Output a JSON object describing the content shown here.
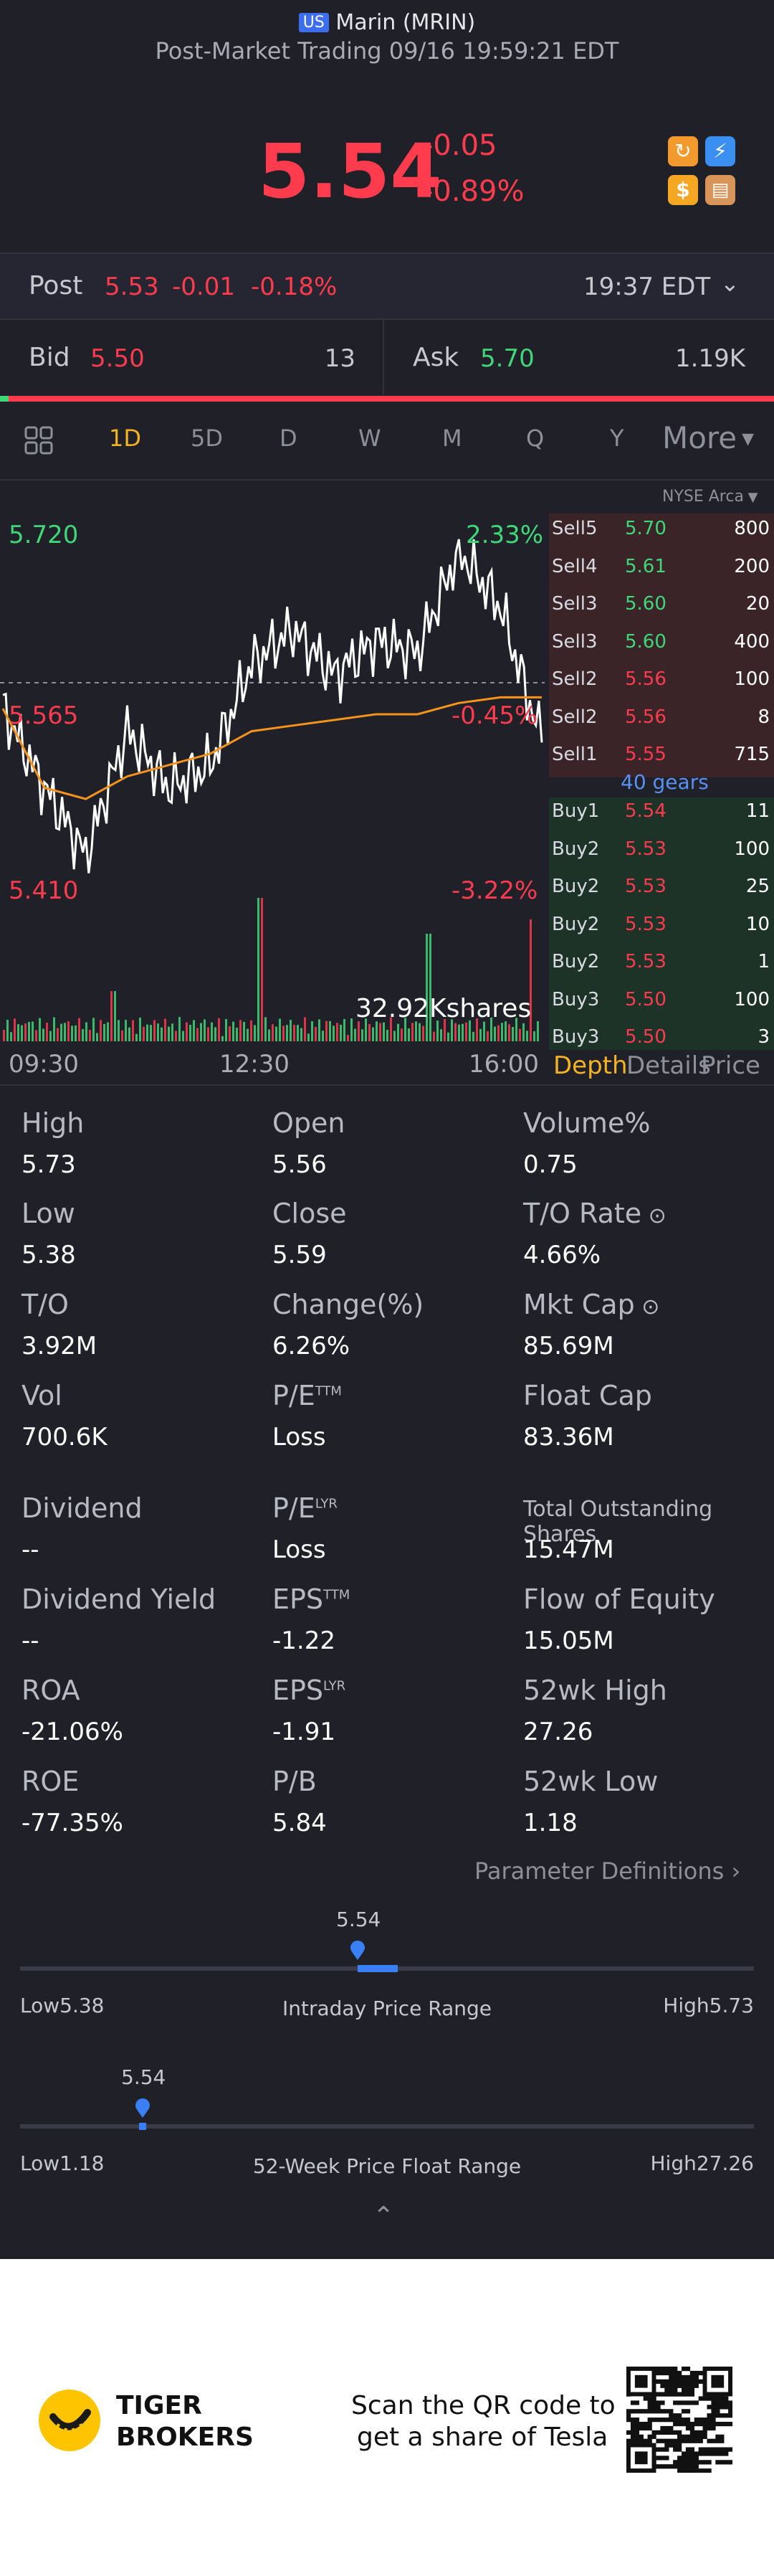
{
  "header": {
    "market_badge": "US",
    "name": "Marin (MRIN)",
    "session": "Post-Market Trading 09/16 19:59:21 EDT",
    "price": "5.54",
    "change": "-0.05",
    "change_pct": "-0.89%"
  },
  "post": {
    "label": "Post",
    "price": "5.53",
    "change": "-0.01",
    "change_pct": "-0.18%",
    "time": "19:37 EDT"
  },
  "bid_ask": {
    "bid_label": "Bid",
    "bid_price": "5.50",
    "bid_size": "13",
    "ask_label": "Ask",
    "ask_price": "5.70",
    "ask_size": "1.19K"
  },
  "chart_tabs": [
    "1D",
    "5D",
    "D",
    "W",
    "M",
    "Q",
    "Y"
  ],
  "more_label": "More",
  "exchange": "NYSE Arca",
  "chart": {
    "high_label": "5.720",
    "high_pct": "2.33%",
    "mid_label": "5.565",
    "mid_pct": "-0.45%",
    "low_label": "5.410",
    "low_pct": "-3.22%",
    "volume_label": "32.92Kshares",
    "time_labels": [
      "09:30",
      "12:30",
      "16:00"
    ]
  },
  "chart_data": {
    "type": "line",
    "x": [
      "09:30",
      "10:00",
      "10:30",
      "11:00",
      "11:30",
      "12:00",
      "12:30",
      "13:00",
      "13:30",
      "14:00",
      "14:30",
      "15:00",
      "15:30",
      "16:00"
    ],
    "series": [
      {
        "values": [
          5.57,
          5.5,
          5.44,
          5.55,
          5.5,
          5.52,
          5.61,
          5.64,
          5.6,
          5.63,
          5.62,
          5.71,
          5.66,
          5.54
        ]
      },
      {
        "values": [
          5.57,
          5.5,
          5.49,
          5.51,
          5.52,
          5.53,
          5.55,
          5.555,
          5.56,
          5.565,
          5.565,
          5.575,
          5.58,
          5.58
        ]
      }
    ],
    "ylim": [
      5.41,
      5.72
    ],
    "grid": false
  },
  "order_book": {
    "sells": [
      {
        "name": "Sell5",
        "price": "5.70",
        "qty": "800"
      },
      {
        "name": "Sell4",
        "price": "5.61",
        "qty": "200"
      },
      {
        "name": "Sell3",
        "price": "5.60",
        "qty": "20"
      },
      {
        "name": "Sell3",
        "price": "5.60",
        "qty": "400"
      },
      {
        "name": "Sell2",
        "price": "5.56",
        "qty": "100"
      },
      {
        "name": "Sell2",
        "price": "5.56",
        "qty": "8"
      },
      {
        "name": "Sell1",
        "price": "5.55",
        "qty": "715"
      }
    ],
    "gears": "40 gears",
    "buys": [
      {
        "name": "Buy1",
        "price": "5.54",
        "qty": "11"
      },
      {
        "name": "Buy2",
        "price": "5.53",
        "qty": "100"
      },
      {
        "name": "Buy2",
        "price": "5.53",
        "qty": "25"
      },
      {
        "name": "Buy2",
        "price": "5.53",
        "qty": "10"
      },
      {
        "name": "Buy2",
        "price": "5.53",
        "qty": "1"
      },
      {
        "name": "Buy3",
        "price": "5.50",
        "qty": "100"
      },
      {
        "name": "Buy3",
        "price": "5.50",
        "qty": "3"
      }
    ]
  },
  "panel_tabs": [
    "Depth",
    "Details",
    "Price"
  ],
  "stats": {
    "high": {
      "label": "High",
      "value": "5.73"
    },
    "open": {
      "label": "Open",
      "value": "5.56"
    },
    "volume_pct": {
      "label": "Volume%",
      "value": "0.75"
    },
    "low": {
      "label": "Low",
      "value": "5.38"
    },
    "close": {
      "label": "Close",
      "value": "5.59"
    },
    "to_rate": {
      "label": "T/O Rate",
      "value": "4.66%"
    },
    "to": {
      "label": "T/O",
      "value": "3.92M"
    },
    "change": {
      "label": "Change(%)",
      "value": "6.26%"
    },
    "mkt_cap": {
      "label": "Mkt Cap",
      "value": "85.69M"
    },
    "vol": {
      "label": "Vol",
      "value": "700.6K"
    },
    "pe_ttm": {
      "label": "P/E",
      "sup": "TTM",
      "value": "Loss"
    },
    "float_cap": {
      "label": "Float Cap",
      "value": "83.36M"
    },
    "dividend": {
      "label": "Dividend",
      "value": "--"
    },
    "pe_lyr": {
      "label": "P/E",
      "sup": "LYR",
      "value": "Loss"
    },
    "total_shares": {
      "label": "Total Outstanding Shares",
      "value": "15.47M"
    },
    "div_yield": {
      "label": "Dividend Yield",
      "value": "--"
    },
    "eps_ttm": {
      "label": "EPS",
      "sup": "TTM",
      "value": "-1.22"
    },
    "flow_equity": {
      "label": "Flow of Equity",
      "value": "15.05M"
    },
    "roa": {
      "label": "ROA",
      "value": "-21.06%"
    },
    "eps_lyr": {
      "label": "EPS",
      "sup": "LYR",
      "value": "-1.91"
    },
    "wk52_high": {
      "label": "52wk High",
      "value": "27.26"
    },
    "roe": {
      "label": "ROE",
      "value": "-77.35%"
    },
    "pb": {
      "label": "P/B",
      "value": "5.84"
    },
    "wk52_low": {
      "label": "52wk Low",
      "value": "1.18"
    }
  },
  "param_defs": "Parameter Definitions",
  "intraday_range": {
    "current": "5.54",
    "low_label": "Low5.38",
    "title": "Intraday Price Range",
    "high_label": "High5.73",
    "position": 0.46
  },
  "week52_range": {
    "current": "5.54",
    "low_label": "Low1.18",
    "title": "52-Week Price Float Range",
    "high_label": "High27.26",
    "position": 0.167
  },
  "footer": {
    "brand_line1": "TIGER",
    "brand_line2": "BROKERS",
    "promo_line1": "Scan the QR code to",
    "promo_line2": "get a share of Tesla"
  }
}
